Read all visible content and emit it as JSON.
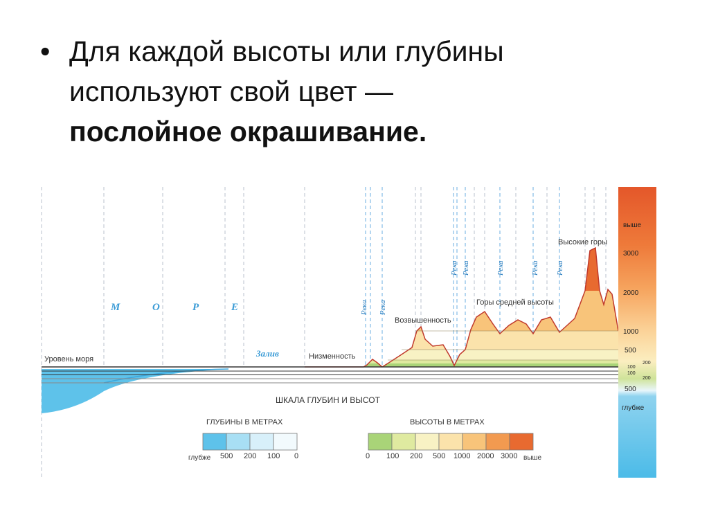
{
  "slide": {
    "bullet": {
      "lines": [
        "Для каждой высоты или глубины",
        "используют свой цвет —"
      ],
      "bold": "послойное окрашивание."
    }
  },
  "diagram": {
    "sea_letters": [
      "М",
      "О",
      "Р",
      "Е"
    ],
    "gulf": "Залив",
    "sea_level": "Уровень моря",
    "lowland": "Низменность",
    "upland": "Возвышенность",
    "mid_mountains": "Горы средней высоты",
    "high_mountains": "Высокие горы",
    "river_labels": [
      "Река",
      "Река",
      "Река",
      "Река",
      "Река",
      "Река",
      "Река"
    ],
    "scale_title": "ШКАЛА ГЛУБИН И ВЫСОТ",
    "right_scale": [
      "выше",
      "3000",
      "2000",
      "1000",
      "500",
      "200",
      "100",
      "100",
      "200",
      "500",
      "глубже"
    ],
    "depth_legend": {
      "title": "ГЛУБИНЫ В МЕТРАХ",
      "labels": [
        "глубже",
        "500",
        "200",
        "100",
        "0"
      ]
    },
    "height_legend": {
      "title": "ВЫСОТЫ В МЕТРАХ",
      "labels": [
        "0",
        "100",
        "200",
        "500",
        "1000",
        "2000",
        "3000",
        "выше"
      ]
    }
  }
}
